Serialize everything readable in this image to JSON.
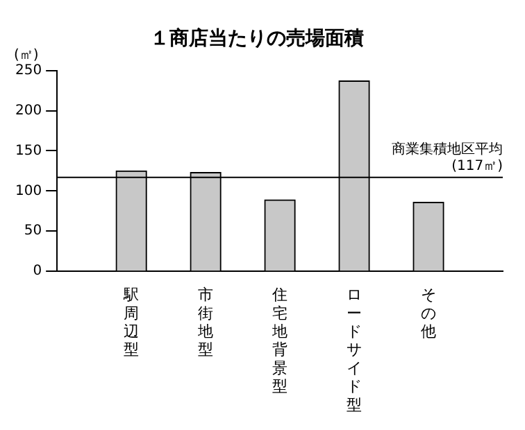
{
  "chart_data": {
    "type": "bar",
    "title": "１商店当たりの売場面積",
    "ylabel": "(㎡)",
    "categories": [
      "駅周辺型",
      "市街地型",
      "住宅地背景型",
      "ロードサイド型",
      "その他"
    ],
    "values": [
      125,
      123,
      89,
      237,
      86
    ],
    "color": "#c8c8c8",
    "ylim": [
      0,
      250
    ],
    "yticks": [
      0,
      50,
      100,
      150,
      200,
      250
    ],
    "grid": false,
    "legend": false,
    "ref_lines": [
      {
        "axis": "y",
        "value": 117,
        "label": "商業集積地区平均\n(117㎡)",
        "color": "#000000"
      }
    ]
  }
}
